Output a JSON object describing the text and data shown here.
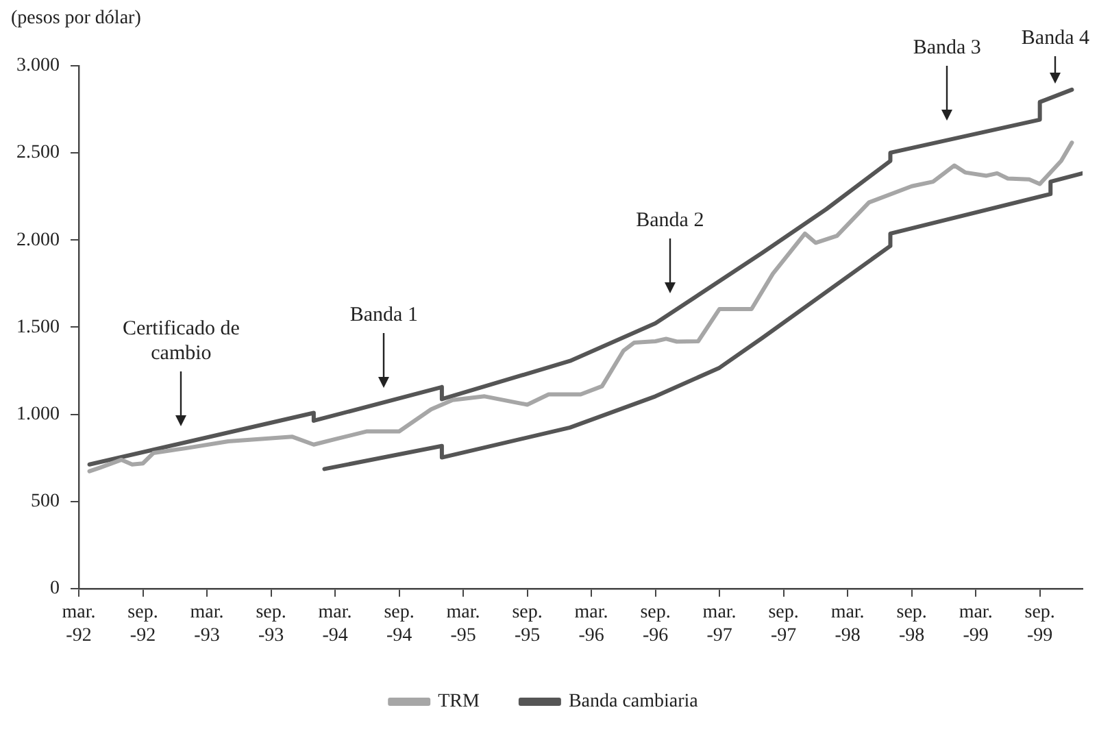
{
  "chart_data": {
    "type": "line",
    "ylabel": "(pesos por dólar)",
    "xlim": [
      "1992-03",
      "2000-01"
    ],
    "xticks": [
      {
        "value": "1992-03",
        "label": "mar. -92"
      },
      {
        "value": "1992-09",
        "label": "sep. -92"
      },
      {
        "value": "1993-03",
        "label": "mar. -93"
      },
      {
        "value": "1993-09",
        "label": "sep. -93"
      },
      {
        "value": "1994-03",
        "label": "mar. -94"
      },
      {
        "value": "1994-09",
        "label": "sep. -94"
      },
      {
        "value": "1995-03",
        "label": "mar. -95"
      },
      {
        "value": "1995-09",
        "label": "sep. -95"
      },
      {
        "value": "1996-03",
        "label": "mar. -96"
      },
      {
        "value": "1996-09",
        "label": "sep. -96"
      },
      {
        "value": "1997-03",
        "label": "mar. -97"
      },
      {
        "value": "1997-09",
        "label": "sep. -97"
      },
      {
        "value": "1998-03",
        "label": "mar. -98"
      },
      {
        "value": "1998-09",
        "label": "sep. -98"
      },
      {
        "value": "1999-03",
        "label": "mar. -99"
      },
      {
        "value": "1999-09",
        "label": "sep. -99"
      }
    ],
    "ylim": [
      0,
      3000
    ],
    "yticks": [
      0,
      {
        "value": 500,
        "label": "500"
      },
      {
        "value": 1000,
        "label": "1.000"
      },
      {
        "value": 1500,
        "label": "1.500"
      },
      {
        "value": 2000,
        "label": "2.000"
      },
      {
        "value": 2500,
        "label": "2.500"
      },
      {
        "value": 3000,
        "label": "3.000"
      }
    ],
    "grid": false,
    "legend": "bottom",
    "marker": "none",
    "line_style": "solid",
    "series": [
      {
        "name": "TRM",
        "color": "#a6a6a6",
        "x": [
          "1992-04",
          "1992-05",
          "1992-07",
          "1992-08",
          "1992-09",
          "1992-10",
          "1993-01",
          "1993-05",
          "1993-11",
          "1994-01",
          "1994-03",
          "1994-06",
          "1994-09",
          "1994-12",
          "1995-02",
          "1995-05",
          "1995-09",
          "1995-11",
          "1996-02",
          "1996-04",
          "1996-06",
          "1996-07",
          "1996-09",
          "1996-10",
          "1996-11",
          "1997-01",
          "1997-03",
          "1997-06",
          "1997-08",
          "1997-11",
          "1997-12",
          "1998-02",
          "1998-05",
          "1998-09",
          "1998-11",
          "1999-01",
          "1999-02",
          "1999-04",
          "1999-05",
          "1999-06",
          "1999-08",
          "1999-09",
          "1999-11",
          "1999-12"
        ],
        "values": [
          673,
          694,
          739,
          712,
          718,
          778,
          805,
          845,
          871,
          826,
          857,
          902,
          902,
          1029,
          1082,
          1103,
          1055,
          1114,
          1114,
          1161,
          1364,
          1411,
          1419,
          1433,
          1417,
          1419,
          1604,
          1604,
          1807,
          2037,
          1984,
          2024,
          2216,
          2309,
          2335,
          2428,
          2388,
          2369,
          2383,
          2353,
          2348,
          2322,
          2454,
          2559
        ]
      },
      {
        "name": "Banda cambiaria",
        "color": "#555555",
        "x": [
          "1992-04",
          "1994-01",
          "1994-01",
          "1995-01",
          "1995-01",
          "1996-01",
          "1996-09",
          "1997-07",
          "1998-01",
          "1998-07",
          "1998-07",
          "1999-09",
          "1999-09",
          "1999-12"
        ],
        "values": [
          712,
          1008,
          963,
          1156,
          1087,
          1306,
          1522,
          1926,
          2177,
          2454,
          2501,
          2691,
          2792,
          2863
        ]
      },
      {
        "color": "#555555",
        "x": [
          "1994-02",
          "1995-01",
          "1995-01",
          "1996-01",
          "1996-09",
          "1997-03",
          "1997-07",
          "1998-07",
          "1998-07",
          "1999-10",
          "1999-10",
          "2000-01"
        ],
        "values": [
          686,
          818,
          752,
          924,
          1103,
          1267,
          1438,
          1966,
          2037,
          2264,
          2335,
          2383
        ]
      }
    ],
    "annotations": [
      "Certificado de cambio",
      "Banda 1",
      "Banda 2",
      "Banda 3",
      "Banda 4"
    ]
  }
}
